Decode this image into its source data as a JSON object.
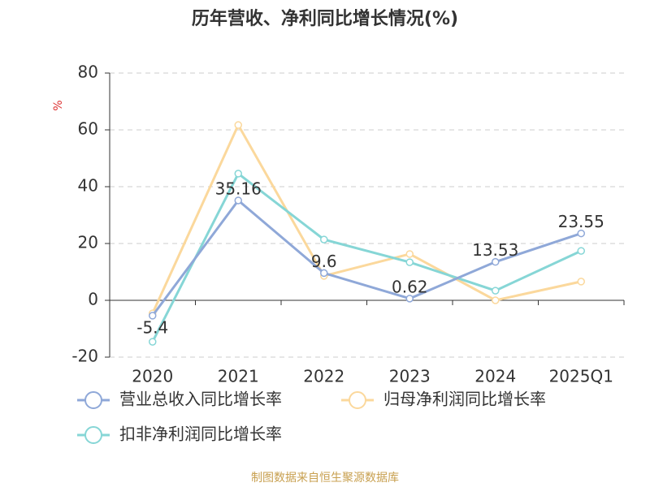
{
  "chart_data": {
    "type": "line",
    "title": "历年营收、净利同比增长情况(%)",
    "y_label": "%",
    "source": "制图数据来自恒生聚源数据库",
    "categories": [
      "2020",
      "2021",
      "2022",
      "2023",
      "2024",
      "2025Q1"
    ],
    "series": [
      {
        "name": "营业总收入同比增长率",
        "color": "#8fa8d8",
        "values": [
          -5.4,
          35.16,
          9.6,
          0.62,
          13.53,
          23.55
        ],
        "show_labels": true
      },
      {
        "name": "归母净利润同比增长率",
        "color": "#fbd89c",
        "values": [
          -4.6,
          61.7,
          8.6,
          16.3,
          0,
          6.6
        ]
      },
      {
        "name": "扣非净利润同比增长率",
        "color": "#86d6d6",
        "values": [
          -14.6,
          44.6,
          21.4,
          13.4,
          3.4,
          17.4
        ]
      }
    ],
    "ylim": [
      -20,
      80
    ],
    "yticks": [
      -20,
      0,
      20,
      40,
      60,
      80
    ],
    "grid": true,
    "legend": "bottom"
  }
}
